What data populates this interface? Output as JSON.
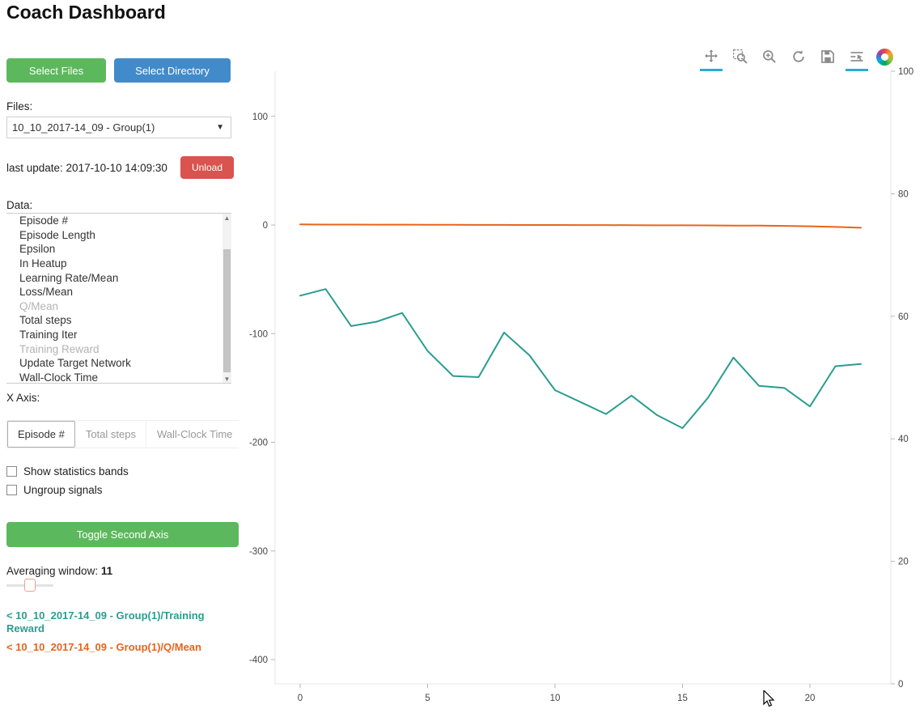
{
  "page": {
    "title": "Coach Dashboard"
  },
  "colors": {
    "select_files_btn": "#5cb85c",
    "select_directory_btn": "#428bca",
    "unload_btn": "#d9534f",
    "toggle_second_axis_btn": "#5cb85c",
    "active_tool_underline": "#2caad2"
  },
  "sidebar": {
    "select_files_label": "Select Files",
    "select_directory_label": "Select Directory",
    "files_label": "Files:",
    "files_selected": "10_10_2017-14_09 - Group(1)",
    "last_update": "last update: 2017-10-10 14:09:30",
    "unload_label": "Unload",
    "data_label": "Data:",
    "data_items": [
      {
        "label": "Episode #",
        "dimmed": false
      },
      {
        "label": "Episode Length",
        "dimmed": false
      },
      {
        "label": "Epsilon",
        "dimmed": false
      },
      {
        "label": "In Heatup",
        "dimmed": false
      },
      {
        "label": "Learning Rate/Mean",
        "dimmed": false
      },
      {
        "label": "Loss/Mean",
        "dimmed": false
      },
      {
        "label": "Q/Mean",
        "dimmed": true
      },
      {
        "label": "Total steps",
        "dimmed": false
      },
      {
        "label": "Training Iter",
        "dimmed": false
      },
      {
        "label": "Training Reward",
        "dimmed": true
      },
      {
        "label": "Update Target Network",
        "dimmed": false
      },
      {
        "label": "Wall-Clock Time",
        "dimmed": false
      }
    ],
    "x_axis_label": "X Axis:",
    "x_axis_options": [
      {
        "label": "Episode #",
        "active": true
      },
      {
        "label": "Total steps",
        "active": false
      },
      {
        "label": "Wall-Clock Time",
        "active": false
      }
    ],
    "checkboxes": [
      {
        "label": "Show statistics bands",
        "checked": false
      },
      {
        "label": "Ungroup signals",
        "checked": false
      }
    ],
    "toggle_second_axis_label": "Toggle Second Axis",
    "averaging_window_label": "Averaging window:",
    "averaging_window_value": "11",
    "legend": [
      {
        "label": "< 10_10_2017-14_09 - Group(1)/Training Reward",
        "color": "#2a9d8f"
      },
      {
        "label": "< 10_10_2017-14_09 - Group(1)/Q/Mean",
        "color": "#e8641b"
      }
    ]
  },
  "chart_toolbar": {
    "tools": [
      {
        "name": "pan",
        "active": true
      },
      {
        "name": "box-zoom",
        "active": false
      },
      {
        "name": "wheel-zoom",
        "active": false
      },
      {
        "name": "reset",
        "active": false
      },
      {
        "name": "save",
        "active": false
      },
      {
        "name": "hover",
        "active": true
      }
    ]
  },
  "chart_data": {
    "type": "line",
    "x": [
      0,
      1,
      2,
      3,
      4,
      5,
      6,
      7,
      8,
      9,
      10,
      11,
      12,
      13,
      14,
      15,
      16,
      17,
      18,
      19,
      20,
      21,
      22
    ],
    "series": [
      {
        "name": "10_10_2017-14_09 - Group(1)/Training Reward",
        "color": "#2a9d8f",
        "axis": "left",
        "values": [
          -65,
          -59,
          -93,
          -89,
          -81,
          -116,
          -139,
          -140,
          -99,
          -120,
          -152,
          -163,
          -174,
          -157,
          -175,
          -187,
          -159,
          -122,
          -148,
          -150,
          -167,
          -130,
          -128
        ]
      },
      {
        "name": "10_10_2017-14_09 - Group(1)/Q/Mean",
        "color": "#e8641b",
        "axis": "left",
        "values": [
          0.5,
          0.4,
          0.4,
          0.3,
          0.3,
          0.2,
          0.2,
          0.1,
          0.1,
          0,
          0,
          -0.1,
          -0.1,
          -0.2,
          -0.3,
          -0.3,
          -0.4,
          -0.5,
          -0.6,
          -0.8,
          -1.2,
          -1.8,
          -2.5
        ]
      }
    ],
    "title": "",
    "xlabel": "",
    "ylabel": "",
    "left_axis": {
      "ticks": [
        100,
        0,
        -100,
        -200,
        -300,
        -400
      ],
      "range": [
        -422,
        141
      ]
    },
    "right_axis": {
      "ticks": [
        100,
        80,
        60,
        40,
        20,
        0
      ],
      "range": [
        0,
        100
      ]
    },
    "x_axis": {
      "ticks": [
        0,
        5,
        10,
        15,
        20
      ],
      "range": [
        -1,
        23.1
      ]
    },
    "grid": false,
    "legend_position": "sidebar"
  }
}
